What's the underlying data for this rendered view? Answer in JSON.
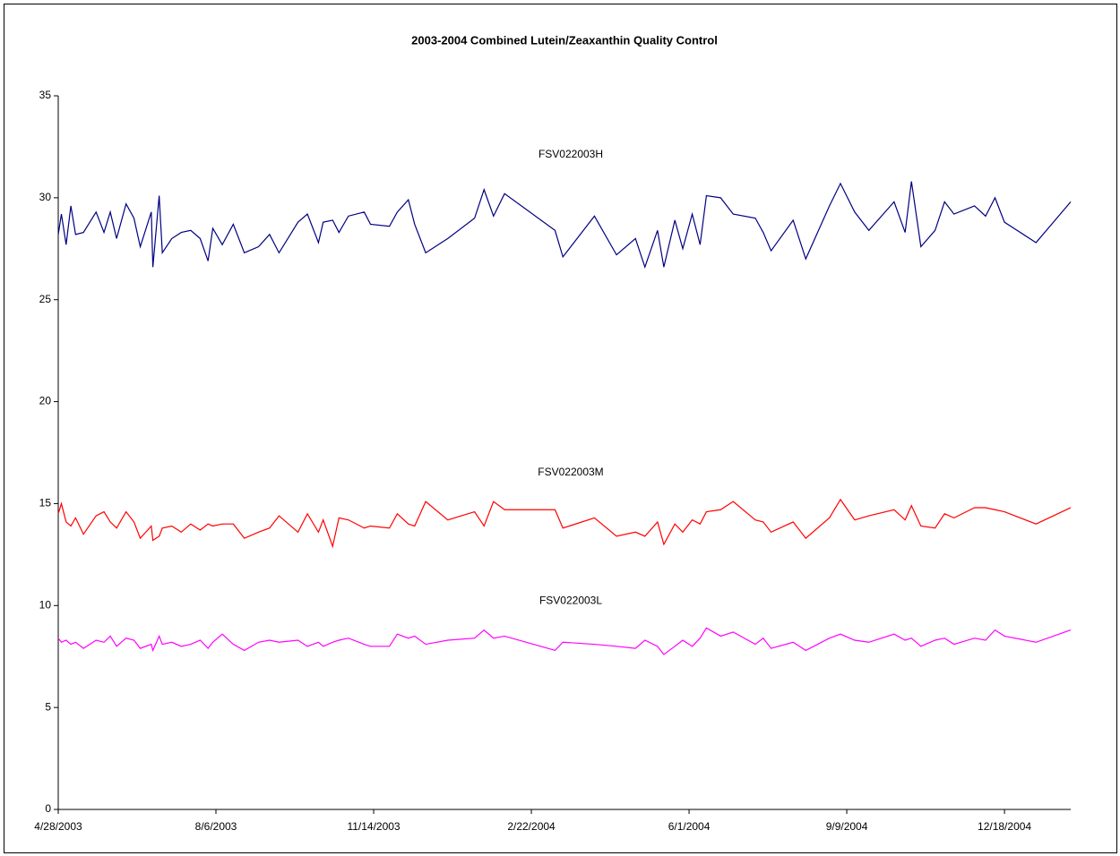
{
  "chart_data": {
    "type": "line",
    "title": "2003-2004 Combined Lutein/Zeaxanthin Quality Control",
    "x": [
      "4/28/2003",
      "4/30/2003",
      "5/3/2003",
      "5/6/2003",
      "5/9/2003",
      "5/14/2003",
      "5/22/2003",
      "5/27/2003",
      "5/31/2003",
      "6/4/2003",
      "6/10/2003",
      "6/15/2003",
      "6/19/2003",
      "6/26/2003",
      "6/27/2003",
      "7/1/2003",
      "7/3/2003",
      "7/9/2003",
      "7/15/2003",
      "7/21/2003",
      "7/27/2003",
      "8/1/2003",
      "8/4/2003",
      "8/10/2003",
      "8/17/2003",
      "8/24/2003",
      "9/2/2003",
      "9/9/2003",
      "9/15/2003",
      "9/27/2003",
      "10/3/2003",
      "10/10/2003",
      "10/13/2003",
      "10/19/2003",
      "10/23/2003",
      "10/29/2003",
      "11/8/2003",
      "11/12/2003",
      "11/24/2003",
      "11/29/2003",
      "12/6/2003",
      "12/10/2003",
      "12/17/2003",
      "12/31/2003",
      "1/17/2004",
      "1/23/2004",
      "1/29/2004",
      "2/5/2004",
      "3/8/2004",
      "3/13/2004",
      "4/2/2004",
      "4/16/2004",
      "4/28/2004",
      "5/4/2004",
      "5/12/2004",
      "5/16/2004",
      "5/23/2004",
      "5/28/2004",
      "6/3/2004",
      "6/8/2004",
      "6/12/2004",
      "6/21/2004",
      "6/29/2004",
      "7/13/2004",
      "7/18/2004",
      "7/23/2004",
      "8/6/2004",
      "8/14/2004",
      "8/29/2004",
      "9/5/2004",
      "9/14/2004",
      "9/23/2004",
      "10/9/2004",
      "10/16/2004",
      "10/20/2004",
      "10/26/2004",
      "11/4/2004",
      "11/10/2004",
      "11/16/2004",
      "11/29/2004",
      "12/6/2004",
      "12/12/2004",
      "12/18/2004",
      "1/7/2005",
      "1/29/2005"
    ],
    "series": [
      {
        "name": "FSV022003H",
        "color": "#000080",
        "values": [
          28.2,
          29.2,
          27.7,
          29.6,
          28.2,
          28.3,
          29.3,
          28.3,
          29.3,
          28.0,
          29.7,
          29.0,
          27.6,
          29.3,
          26.6,
          30.1,
          27.3,
          28.0,
          28.3,
          28.4,
          28.0,
          26.9,
          28.5,
          27.7,
          28.7,
          27.3,
          27.6,
          28.2,
          27.3,
          28.8,
          29.2,
          27.8,
          28.8,
          28.9,
          28.3,
          29.1,
          29.3,
          28.7,
          28.6,
          29.3,
          29.9,
          28.7,
          27.3,
          28.0,
          29.0,
          30.4,
          29.1,
          30.2,
          28.4,
          27.1,
          29.1,
          27.2,
          28.0,
          26.6,
          28.4,
          26.6,
          28.9,
          27.5,
          29.2,
          27.7,
          30.1,
          30.0,
          29.2,
          29.0,
          28.3,
          27.4,
          28.9,
          27.0,
          29.6,
          30.7,
          29.3,
          28.4,
          29.8,
          28.3,
          30.8,
          27.6,
          28.4,
          29.8,
          29.2,
          29.6,
          29.1,
          30.0,
          28.8,
          27.8,
          29.8
        ]
      },
      {
        "name": "FSV022003M",
        "color": "#ff0000",
        "values": [
          14.5,
          15.0,
          14.1,
          13.9,
          14.3,
          13.5,
          14.4,
          14.6,
          14.1,
          13.8,
          14.6,
          14.1,
          13.3,
          13.9,
          13.2,
          13.4,
          13.8,
          13.9,
          13.6,
          14.0,
          13.7,
          14.0,
          13.9,
          14.0,
          14.0,
          13.3,
          13.6,
          13.8,
          14.4,
          13.6,
          14.5,
          13.6,
          14.2,
          12.9,
          14.3,
          14.2,
          13.8,
          13.9,
          13.8,
          14.5,
          14.0,
          13.9,
          15.1,
          14.2,
          14.6,
          13.9,
          15.1,
          14.7,
          14.7,
          13.8,
          14.3,
          13.4,
          13.6,
          13.4,
          14.1,
          13.0,
          14.0,
          13.6,
          14.2,
          14.0,
          14.6,
          14.7,
          15.1,
          14.2,
          14.1,
          13.6,
          14.1,
          13.3,
          14.3,
          15.2,
          14.2,
          14.4,
          14.7,
          14.2,
          14.9,
          13.9,
          13.8,
          14.5,
          14.3,
          14.8,
          14.8,
          14.7,
          14.6,
          14.0,
          14.8
        ]
      },
      {
        "name": "FSV022003L",
        "color": "#ff00ff",
        "values": [
          8.4,
          8.2,
          8.3,
          8.1,
          8.2,
          7.9,
          8.3,
          8.2,
          8.5,
          8.0,
          8.4,
          8.3,
          7.9,
          8.1,
          7.8,
          8.5,
          8.1,
          8.2,
          8.0,
          8.1,
          8.3,
          7.9,
          8.2,
          8.6,
          8.1,
          7.8,
          8.2,
          8.3,
          8.2,
          8.3,
          8.0,
          8.2,
          8.0,
          8.2,
          8.3,
          8.4,
          8.1,
          8.0,
          8.0,
          8.6,
          8.4,
          8.5,
          8.1,
          8.3,
          8.4,
          8.8,
          8.4,
          8.5,
          7.8,
          8.2,
          8.1,
          8.0,
          7.9,
          8.3,
          8.0,
          7.6,
          8.0,
          8.3,
          8.0,
          8.4,
          8.9,
          8.5,
          8.7,
          8.1,
          8.4,
          7.9,
          8.2,
          7.8,
          8.4,
          8.6,
          8.3,
          8.2,
          8.6,
          8.3,
          8.4,
          8.0,
          8.3,
          8.4,
          8.1,
          8.4,
          8.3,
          8.8,
          8.5,
          8.2,
          8.8
        ]
      }
    ],
    "xlim": [
      "4/28/2003",
      "1/29/2005"
    ],
    "xticks": [
      "4/28/2003",
      "8/6/2003",
      "11/14/2003",
      "2/22/2004",
      "6/1/2004",
      "9/9/2004",
      "12/18/2004"
    ],
    "ylim": [
      0,
      35
    ],
    "yticks": [
      0,
      5,
      10,
      15,
      20,
      25,
      30,
      35
    ]
  }
}
